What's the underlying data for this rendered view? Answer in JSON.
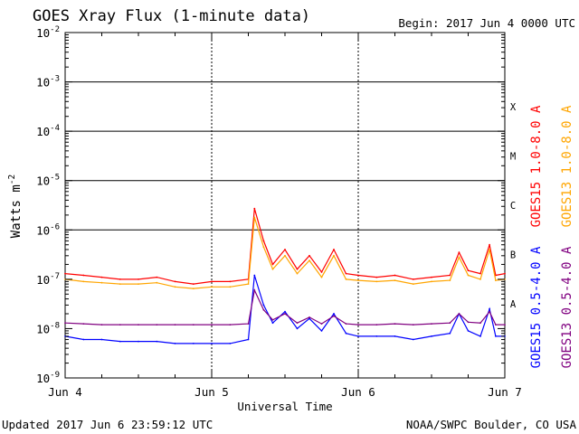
{
  "header": {
    "title": "GOES Xray Flux (1-minute data)",
    "begin": "Begin:  2017 Jun 4 0000 UTC"
  },
  "footer": {
    "updated": "Updated 2017 Jun  6 23:59:12 UTC",
    "source": "NOAA/SWPC Boulder, CO USA"
  },
  "chart_data": {
    "type": "line",
    "title": "GOES Xray Flux (1-minute data)",
    "xlabel": "Universal Time",
    "ylabel": "Watts m",
    "ylabel_exponent": "-2",
    "yscale": "log",
    "ylim": [
      1e-09,
      0.01
    ],
    "xlim": [
      "2017-06-04 00:00",
      "2017-06-07 00:00"
    ],
    "grid": "horizontal lines at decades 1e-6 to 1e-3; dotted vertical day lines",
    "y_ticks": [
      {
        "base": "10",
        "exp": "-9",
        "value": 1e-09
      },
      {
        "base": "10",
        "exp": "-8",
        "value": 1e-08
      },
      {
        "base": "10",
        "exp": "-7",
        "value": 1e-07
      },
      {
        "base": "10",
        "exp": "-6",
        "value": 1e-06
      },
      {
        "base": "10",
        "exp": "-5",
        "value": 1e-05
      },
      {
        "base": "10",
        "exp": "-4",
        "value": 0.0001
      },
      {
        "base": "10",
        "exp": "-3",
        "value": 0.001
      },
      {
        "base": "10",
        "exp": "-2",
        "value": 0.01
      }
    ],
    "x_ticks": [
      {
        "label": "Jun 4",
        "x": "2017-06-04 00:00"
      },
      {
        "label": "Jun 5",
        "x": "2017-06-05 00:00"
      },
      {
        "label": "Jun 6",
        "x": "2017-06-06 00:00"
      },
      {
        "label": "Jun 7",
        "x": "2017-06-07 00:00"
      }
    ],
    "flare_classes": [
      {
        "label": "X",
        "level": 0.0001
      },
      {
        "label": "M",
        "level": 1e-05
      },
      {
        "label": "C",
        "level": 1e-06
      },
      {
        "label": "B",
        "level": 1e-07
      },
      {
        "label": "A",
        "level": 1e-08
      }
    ],
    "series": [
      {
        "name": "GOES15 1.0-8.0 A",
        "color": "#ff0000",
        "x": [
          "2017-06-04 00:00",
          "2017-06-04 03:00",
          "2017-06-04 06:00",
          "2017-06-04 09:00",
          "2017-06-04 12:00",
          "2017-06-04 15:00",
          "2017-06-04 18:00",
          "2017-06-04 21:00",
          "2017-06-05 00:00",
          "2017-06-05 03:00",
          "2017-06-05 06:00",
          "2017-06-05 07:00",
          "2017-06-05 08:30",
          "2017-06-05 10:00",
          "2017-06-05 12:00",
          "2017-06-05 14:00",
          "2017-06-05 16:00",
          "2017-06-05 18:00",
          "2017-06-05 20:00",
          "2017-06-05 22:00",
          "2017-06-06 00:00",
          "2017-06-06 03:00",
          "2017-06-06 06:00",
          "2017-06-06 09:00",
          "2017-06-06 12:00",
          "2017-06-06 15:00",
          "2017-06-06 16:30",
          "2017-06-06 18:00",
          "2017-06-06 20:00",
          "2017-06-06 21:30",
          "2017-06-06 22:30",
          "2017-06-07 00:00"
        ],
        "values": [
          1.3e-07,
          1.2e-07,
          1.1e-07,
          1e-07,
          1e-07,
          1.1e-07,
          9e-08,
          8e-08,
          9e-08,
          9e-08,
          1e-07,
          2.7e-06,
          6e-07,
          2e-07,
          4e-07,
          1.6e-07,
          3e-07,
          1.4e-07,
          4e-07,
          1.3e-07,
          1.2e-07,
          1.1e-07,
          1.2e-07,
          1e-07,
          1.1e-07,
          1.2e-07,
          3.5e-07,
          1.5e-07,
          1.3e-07,
          5e-07,
          1.2e-07,
          1.3e-07
        ]
      },
      {
        "name": "GOES13 1.0-8.0 A",
        "color": "#ffa500",
        "x": [
          "2017-06-04 00:00",
          "2017-06-04 03:00",
          "2017-06-04 06:00",
          "2017-06-04 09:00",
          "2017-06-04 12:00",
          "2017-06-04 15:00",
          "2017-06-04 18:00",
          "2017-06-04 21:00",
          "2017-06-05 00:00",
          "2017-06-05 03:00",
          "2017-06-05 06:00",
          "2017-06-05 07:00",
          "2017-06-05 08:30",
          "2017-06-05 10:00",
          "2017-06-05 12:00",
          "2017-06-05 14:00",
          "2017-06-05 16:00",
          "2017-06-05 18:00",
          "2017-06-05 20:00",
          "2017-06-05 22:00",
          "2017-06-06 00:00",
          "2017-06-06 03:00",
          "2017-06-06 06:00",
          "2017-06-06 09:00",
          "2017-06-06 12:00",
          "2017-06-06 15:00",
          "2017-06-06 16:30",
          "2017-06-06 18:00",
          "2017-06-06 20:00",
          "2017-06-06 21:30",
          "2017-06-06 22:30",
          "2017-06-07 00:00"
        ],
        "values": [
          1e-07,
          9e-08,
          8.5e-08,
          8e-08,
          8e-08,
          8.5e-08,
          7e-08,
          6.5e-08,
          7e-08,
          7e-08,
          8e-08,
          1.8e-06,
          4.5e-07,
          1.6e-07,
          3e-07,
          1.3e-07,
          2.4e-07,
          1.1e-07,
          3e-07,
          1e-07,
          9.5e-08,
          9e-08,
          9.5e-08,
          8e-08,
          9e-08,
          9.5e-08,
          2.8e-07,
          1.2e-07,
          1e-07,
          4e-07,
          9.5e-08,
          1e-07
        ]
      },
      {
        "name": "GOES15 0.5-4.0 A",
        "color": "#0000ff",
        "x": [
          "2017-06-04 00:00",
          "2017-06-04 03:00",
          "2017-06-04 06:00",
          "2017-06-04 09:00",
          "2017-06-04 12:00",
          "2017-06-04 15:00",
          "2017-06-04 18:00",
          "2017-06-04 21:00",
          "2017-06-05 00:00",
          "2017-06-05 03:00",
          "2017-06-05 06:00",
          "2017-06-05 07:00",
          "2017-06-05 08:30",
          "2017-06-05 10:00",
          "2017-06-05 12:00",
          "2017-06-05 14:00",
          "2017-06-05 16:00",
          "2017-06-05 18:00",
          "2017-06-05 20:00",
          "2017-06-05 22:00",
          "2017-06-06 00:00",
          "2017-06-06 03:00",
          "2017-06-06 06:00",
          "2017-06-06 09:00",
          "2017-06-06 12:00",
          "2017-06-06 15:00",
          "2017-06-06 16:30",
          "2017-06-06 18:00",
          "2017-06-06 20:00",
          "2017-06-06 21:30",
          "2017-06-06 22:30",
          "2017-06-07 00:00"
        ],
        "values": [
          7e-09,
          6e-09,
          6e-09,
          5.5e-09,
          5.5e-09,
          5.5e-09,
          5e-09,
          5e-09,
          5e-09,
          5e-09,
          6e-09,
          1.2e-07,
          3e-08,
          1.3e-08,
          2.2e-08,
          1e-08,
          1.6e-08,
          9e-09,
          2e-08,
          8e-09,
          7e-09,
          7e-09,
          7e-09,
          6e-09,
          7e-09,
          8e-09,
          2e-08,
          9e-09,
          7e-09,
          2.5e-08,
          7e-09,
          7e-09
        ]
      },
      {
        "name": "GOES13 0.5-4.0 A",
        "color": "#800080",
        "x": [
          "2017-06-04 00:00",
          "2017-06-04 03:00",
          "2017-06-04 06:00",
          "2017-06-04 09:00",
          "2017-06-04 12:00",
          "2017-06-04 15:00",
          "2017-06-04 18:00",
          "2017-06-04 21:00",
          "2017-06-05 00:00",
          "2017-06-05 03:00",
          "2017-06-05 06:00",
          "2017-06-05 07:00",
          "2017-06-05 08:30",
          "2017-06-05 10:00",
          "2017-06-05 12:00",
          "2017-06-05 14:00",
          "2017-06-05 16:00",
          "2017-06-05 18:00",
          "2017-06-05 20:00",
          "2017-06-05 22:00",
          "2017-06-06 00:00",
          "2017-06-06 03:00",
          "2017-06-06 06:00",
          "2017-06-06 09:00",
          "2017-06-06 12:00",
          "2017-06-06 15:00",
          "2017-06-06 16:30",
          "2017-06-06 18:00",
          "2017-06-06 20:00",
          "2017-06-06 21:30",
          "2017-06-06 22:30",
          "2017-06-07 00:00"
        ],
        "values": [
          1.3e-08,
          1.25e-08,
          1.2e-08,
          1.2e-08,
          1.2e-08,
          1.2e-08,
          1.2e-08,
          1.2e-08,
          1.2e-08,
          1.2e-08,
          1.25e-08,
          6e-08,
          2.4e-08,
          1.5e-08,
          2e-08,
          1.3e-08,
          1.7e-08,
          1.25e-08,
          1.8e-08,
          1.25e-08,
          1.2e-08,
          1.2e-08,
          1.25e-08,
          1.2e-08,
          1.25e-08,
          1.3e-08,
          2e-08,
          1.35e-08,
          1.3e-08,
          2.2e-08,
          1.2e-08,
          1.2e-08
        ]
      }
    ]
  }
}
